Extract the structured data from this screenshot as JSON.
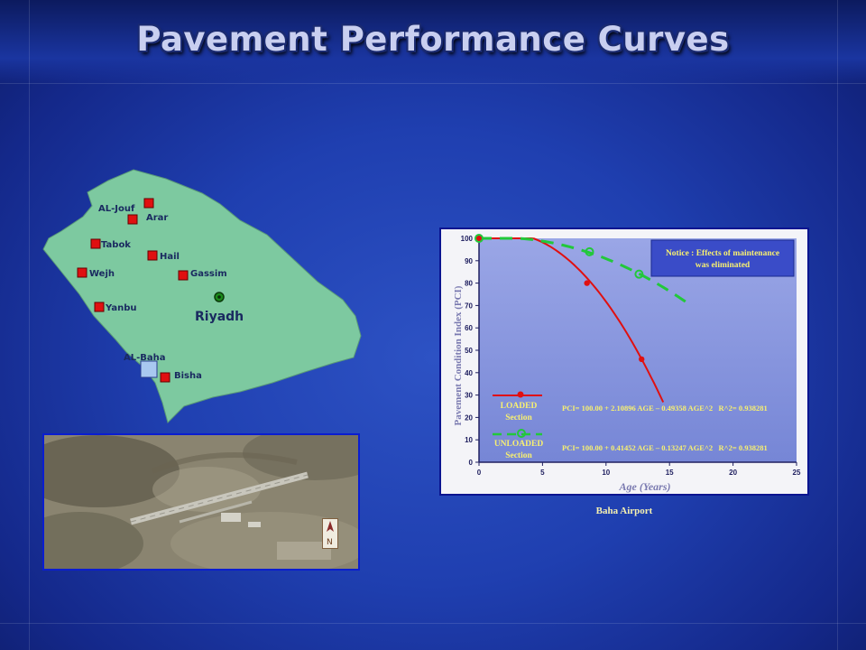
{
  "slide": {
    "title": "Pavement Performance Curves"
  },
  "map": {
    "cities": [
      "AL-Jouf",
      "Arar",
      "Tabok",
      "Hail",
      "Wejh",
      "Gassim",
      "Yanbu",
      "AL-Baha",
      "Bisha"
    ],
    "capital": "Riyadh",
    "land_color": "#7dc9a0",
    "marker_color": "#e01010"
  },
  "chart_data": {
    "type": "line",
    "ylabel": "Pavement Condition Index (PCI)",
    "xlabel": "Age (Years)",
    "xlim": [
      0,
      25
    ],
    "ylim": [
      0,
      100
    ],
    "xticks": [
      0,
      5,
      10,
      15,
      20,
      25
    ],
    "yticks": [
      0,
      10,
      20,
      30,
      40,
      50,
      60,
      70,
      80,
      90,
      100
    ],
    "notice": "Notice : Effects of maintenance was eliminated",
    "series": [
      {
        "name": "LOADED Section",
        "color": "#e01010",
        "style": "solid",
        "equation": "PCI= 100.00 + 2.10896 AGE – 0.49358 AGE^2   R^2= 0.938281",
        "coef": [
          100.0,
          2.10896,
          -0.49358
        ],
        "x_range": [
          0,
          14.5
        ],
        "points": [
          [
            0,
            101
          ],
          [
            8.5,
            80
          ],
          [
            12.8,
            46
          ]
        ]
      },
      {
        "name": "UNLOADED Section",
        "color": "#22c83a",
        "style": "dashed",
        "equation": "PCI= 100.00 + 0.41452 AGE – 0.13247 AGE^2   R^2= 0.938281",
        "coef": [
          100.0,
          0.41452,
          -0.13247
        ],
        "x_range": [
          0,
          16.5
        ],
        "points": [
          [
            0,
            101
          ],
          [
            8.7,
            94
          ],
          [
            12.6,
            84
          ]
        ]
      }
    ]
  },
  "caption": "Baha Airport"
}
